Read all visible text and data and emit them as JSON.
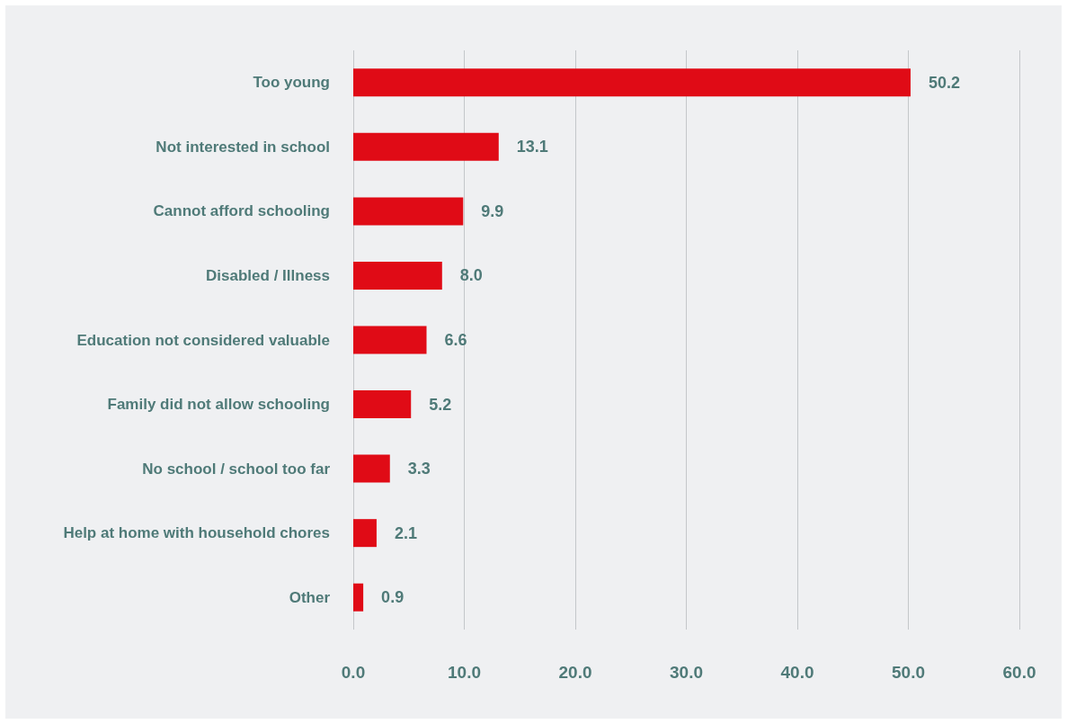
{
  "chart_data": {
    "type": "bar",
    "orientation": "horizontal",
    "categories": [
      "Too young",
      "Not interested in school",
      "Cannot afford schooling",
      "Disabled / Illness",
      "Education not considered valuable",
      "Family did not allow schooling",
      "No school / school too far",
      "Help at home with household chores",
      "Other"
    ],
    "values": [
      50.2,
      13.1,
      9.9,
      8.0,
      6.6,
      5.2,
      3.3,
      2.1,
      0.9
    ],
    "value_labels": [
      "50.2",
      "13.1",
      "9.9",
      "8.0",
      "6.6",
      "5.2",
      "3.3",
      "2.1",
      "0.9"
    ],
    "color": "#e00b16",
    "xlim": [
      0,
      60
    ],
    "xticks": [
      {
        "value": 0,
        "label": "0.0"
      },
      {
        "value": 10,
        "label": "10.0"
      },
      {
        "value": 20,
        "label": "20.0"
      },
      {
        "value": 30,
        "label": "30.0"
      },
      {
        "value": 40,
        "label": "40.0"
      },
      {
        "value": 50,
        "label": "50.0"
      },
      {
        "value": 60,
        "label": "60.0"
      }
    ],
    "grid": "x"
  }
}
